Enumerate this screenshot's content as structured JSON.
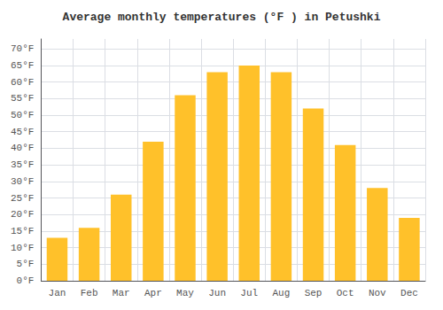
{
  "chart_data": {
    "type": "bar",
    "title": "Average monthly temperatures (°F ) in Petushki",
    "categories": [
      "Jan",
      "Feb",
      "Mar",
      "Apr",
      "May",
      "Jun",
      "Jul",
      "Aug",
      "Sep",
      "Oct",
      "Nov",
      "Dec"
    ],
    "values": [
      13,
      16,
      26,
      42,
      56,
      63,
      65,
      63,
      52,
      41,
      28,
      19
    ],
    "color": "#FFC12A",
    "ylim": [
      0,
      73
    ],
    "yticks": [
      {
        "value": 0,
        "label": "0°F"
      },
      {
        "value": 5,
        "label": "5°F"
      },
      {
        "value": 10,
        "label": "10°F"
      },
      {
        "value": 15,
        "label": "15°F"
      },
      {
        "value": 20,
        "label": "20°F"
      },
      {
        "value": 25,
        "label": "25°F"
      },
      {
        "value": 30,
        "label": "30°F"
      },
      {
        "value": 35,
        "label": "35°F"
      },
      {
        "value": 40,
        "label": "40°F"
      },
      {
        "value": 45,
        "label": "45°F"
      },
      {
        "value": 50,
        "label": "50°F"
      },
      {
        "value": 55,
        "label": "55°F"
      },
      {
        "value": 60,
        "label": "60°F"
      },
      {
        "value": 65,
        "label": "65°F"
      },
      {
        "value": 70,
        "label": "70°F"
      }
    ],
    "grid": true
  }
}
